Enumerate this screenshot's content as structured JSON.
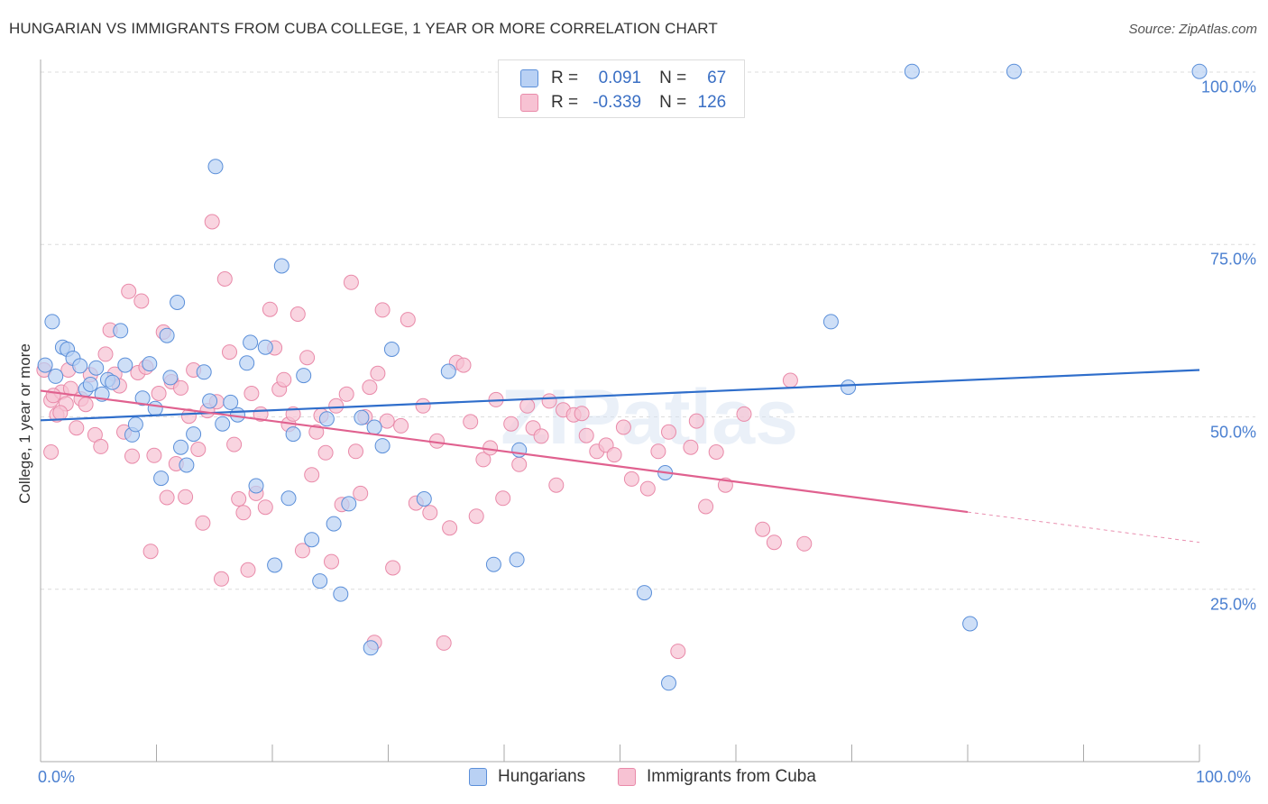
{
  "title": "HUNGARIAN VS IMMIGRANTS FROM CUBA COLLEGE, 1 YEAR OR MORE CORRELATION CHART",
  "source": "Source: ZipAtlas.com",
  "legend": {
    "rows": [
      {
        "r_label": "R =",
        "r_value": "0.091",
        "n_label": "N =",
        "n_value": "67"
      },
      {
        "r_label": "R =",
        "r_value": "-0.339",
        "n_label": "N =",
        "n_value": "126"
      }
    ]
  },
  "bottom_legend": [
    "Hungarians",
    "Immigrants from Cuba"
  ],
  "colors": {
    "blue_fill": "#b9d1f4",
    "blue_stroke": "#5b8fd9",
    "blue_line": "#2f6ecb",
    "pink_fill": "#f7c2d3",
    "pink_stroke": "#e98aa9",
    "pink_line": "#e0618f",
    "tick_text": "#4a7fd0"
  },
  "chart_data": {
    "type": "scatter",
    "title": "HUNGARIAN VS IMMIGRANTS FROM CUBA COLLEGE, 1 YEAR OR MORE CORRELATION CHART",
    "xlabel": "",
    "ylabel": "College, 1 year or more",
    "xlim": [
      0,
      100
    ],
    "ylim": [
      0,
      105
    ],
    "x_tick_labels": [
      "0.0%",
      "100.0%"
    ],
    "y_tick_values": [
      25,
      50,
      75,
      100
    ],
    "y_tick_labels": [
      "25.0%",
      "50.0%",
      "75.0%",
      "100.0%"
    ],
    "grid": true,
    "watermark": "ZIPatlas",
    "series": [
      {
        "name": "Hungarians",
        "color": "#5b8fd9",
        "trend": {
          "x0": 0,
          "y0": 49.5,
          "x1": 100,
          "y1": 56.8
        },
        "points": [
          [
            0.4,
            57.5
          ],
          [
            1.0,
            63.8
          ],
          [
            1.9,
            60.1
          ],
          [
            2.3,
            59.8
          ],
          [
            2.8,
            58.5
          ],
          [
            3.4,
            57.4
          ],
          [
            3.9,
            54.0
          ],
          [
            4.3,
            54.7
          ],
          [
            4.8,
            57.1
          ],
          [
            5.3,
            53.3
          ],
          [
            5.8,
            55.4
          ],
          [
            6.2,
            55.0
          ],
          [
            6.9,
            62.5
          ],
          [
            7.3,
            57.5
          ],
          [
            7.9,
            47.4
          ],
          [
            8.2,
            48.9
          ],
          [
            8.8,
            52.7
          ],
          [
            9.4,
            57.7
          ],
          [
            9.9,
            51.2
          ],
          [
            10.4,
            41.1
          ],
          [
            10.9,
            61.8
          ],
          [
            11.2,
            55.7
          ],
          [
            11.8,
            66.6
          ],
          [
            12.1,
            45.6
          ],
          [
            12.6,
            43.0
          ],
          [
            13.2,
            47.5
          ],
          [
            14.1,
            56.5
          ],
          [
            14.6,
            52.3
          ],
          [
            15.1,
            86.3
          ],
          [
            15.7,
            49.0
          ],
          [
            16.4,
            52.1
          ],
          [
            17.0,
            50.3
          ],
          [
            17.8,
            57.8
          ],
          [
            18.1,
            60.8
          ],
          [
            18.6,
            40.0
          ],
          [
            19.4,
            60.1
          ],
          [
            20.2,
            28.5
          ],
          [
            20.8,
            71.9
          ],
          [
            21.4,
            38.2
          ],
          [
            21.8,
            47.5
          ],
          [
            22.7,
            56.0
          ],
          [
            23.4,
            32.2
          ],
          [
            24.1,
            26.2
          ],
          [
            24.7,
            49.7
          ],
          [
            25.3,
            34.5
          ],
          [
            25.9,
            24.3
          ],
          [
            26.6,
            37.4
          ],
          [
            28.5,
            16.5
          ],
          [
            27.7,
            49.9
          ],
          [
            28.8,
            48.5
          ],
          [
            29.5,
            45.8
          ],
          [
            30.3,
            59.8
          ],
          [
            33.1,
            38.1
          ],
          [
            35.2,
            56.6
          ],
          [
            39.1,
            28.6
          ],
          [
            41.1,
            29.3
          ],
          [
            41.3,
            45.2
          ],
          [
            52.1,
            24.5
          ],
          [
            53.9,
            41.9
          ],
          [
            54.2,
            11.4
          ],
          [
            68.2,
            63.8
          ],
          [
            69.7,
            54.3
          ],
          [
            75.2,
            100.1
          ],
          [
            84.0,
            100.1
          ],
          [
            80.2,
            20.0
          ],
          [
            100.0,
            100.1
          ],
          [
            1.3,
            55.9
          ]
        ]
      },
      {
        "name": "Immigrants from Cuba",
        "color": "#e98aa9",
        "trend": {
          "x0": 0,
          "y0": 53.8,
          "x1": 80,
          "y1": 36.2,
          "dash_to_x": 100,
          "dash_to_y": 31.8
        },
        "points": [
          [
            0.3,
            56.8
          ],
          [
            0.9,
            52.4
          ],
          [
            1.4,
            50.3
          ],
          [
            1.8,
            53.6
          ],
          [
            2.2,
            51.9
          ],
          [
            2.6,
            54.1
          ],
          [
            3.1,
            48.4
          ],
          [
            3.5,
            52.6
          ],
          [
            3.9,
            51.8
          ],
          [
            4.3,
            56.1
          ],
          [
            4.7,
            47.4
          ],
          [
            5.2,
            45.7
          ],
          [
            5.6,
            59.1
          ],
          [
            6.0,
            62.6
          ],
          [
            6.4,
            56.2
          ],
          [
            6.8,
            54.5
          ],
          [
            7.2,
            47.8
          ],
          [
            7.6,
            68.2
          ],
          [
            7.9,
            44.3
          ],
          [
            8.4,
            56.4
          ],
          [
            8.7,
            66.8
          ],
          [
            9.1,
            57.2
          ],
          [
            9.5,
            30.5
          ],
          [
            9.8,
            44.4
          ],
          [
            10.2,
            53.4
          ],
          [
            10.6,
            62.3
          ],
          [
            10.9,
            38.3
          ],
          [
            11.3,
            55.1
          ],
          [
            11.7,
            43.2
          ],
          [
            12.1,
            54.2
          ],
          [
            12.5,
            38.4
          ],
          [
            12.8,
            50.1
          ],
          [
            13.2,
            56.8
          ],
          [
            13.6,
            45.3
          ],
          [
            14.0,
            34.6
          ],
          [
            14.4,
            50.9
          ],
          [
            14.8,
            78.3
          ],
          [
            15.2,
            52.2
          ],
          [
            15.6,
            26.5
          ],
          [
            15.9,
            70.0
          ],
          [
            16.3,
            59.4
          ],
          [
            16.7,
            46.0
          ],
          [
            17.1,
            38.1
          ],
          [
            17.5,
            36.1
          ],
          [
            17.9,
            27.8
          ],
          [
            18.2,
            53.4
          ],
          [
            18.6,
            38.9
          ],
          [
            19.0,
            50.4
          ],
          [
            19.4,
            36.9
          ],
          [
            19.8,
            65.6
          ],
          [
            20.2,
            60.0
          ],
          [
            20.6,
            54.0
          ],
          [
            21.0,
            55.4
          ],
          [
            21.4,
            48.9
          ],
          [
            21.8,
            50.4
          ],
          [
            22.2,
            64.9
          ],
          [
            22.6,
            30.6
          ],
          [
            23.0,
            58.6
          ],
          [
            23.4,
            41.6
          ],
          [
            23.8,
            47.8
          ],
          [
            24.2,
            50.2
          ],
          [
            24.6,
            44.8
          ],
          [
            25.1,
            29.0
          ],
          [
            25.5,
            51.6
          ],
          [
            26.0,
            37.3
          ],
          [
            26.4,
            53.3
          ],
          [
            26.8,
            69.5
          ],
          [
            27.2,
            45.0
          ],
          [
            27.6,
            38.9
          ],
          [
            28.0,
            50.0
          ],
          [
            28.4,
            54.3
          ],
          [
            28.8,
            17.3
          ],
          [
            29.1,
            56.3
          ],
          [
            29.5,
            65.5
          ],
          [
            29.9,
            49.4
          ],
          [
            30.4,
            28.1
          ],
          [
            31.1,
            48.7
          ],
          [
            31.7,
            64.1
          ],
          [
            32.4,
            37.5
          ],
          [
            33.0,
            51.6
          ],
          [
            33.6,
            36.1
          ],
          [
            34.2,
            46.5
          ],
          [
            34.8,
            17.2
          ],
          [
            35.3,
            33.9
          ],
          [
            35.9,
            57.9
          ],
          [
            36.5,
            57.5
          ],
          [
            37.1,
            49.3
          ],
          [
            37.6,
            35.6
          ],
          [
            38.2,
            43.8
          ],
          [
            38.8,
            45.5
          ],
          [
            39.3,
            52.5
          ],
          [
            39.9,
            38.2
          ],
          [
            40.6,
            49.0
          ],
          [
            41.3,
            43.1
          ],
          [
            42.0,
            51.6
          ],
          [
            42.5,
            48.4
          ],
          [
            43.2,
            47.2
          ],
          [
            43.9,
            52.3
          ],
          [
            44.5,
            40.1
          ],
          [
            45.1,
            51.0
          ],
          [
            46.0,
            50.3
          ],
          [
            46.7,
            50.5
          ],
          [
            47.1,
            47.3
          ],
          [
            48.0,
            45.0
          ],
          [
            48.8,
            45.9
          ],
          [
            49.5,
            44.5
          ],
          [
            50.3,
            48.5
          ],
          [
            51.0,
            41.0
          ],
          [
            52.4,
            39.6
          ],
          [
            53.3,
            45.0
          ],
          [
            54.2,
            47.8
          ],
          [
            55.0,
            16.0
          ],
          [
            56.1,
            45.6
          ],
          [
            56.6,
            49.4
          ],
          [
            57.4,
            37.0
          ],
          [
            58.3,
            44.9
          ],
          [
            59.1,
            40.1
          ],
          [
            60.7,
            50.4
          ],
          [
            62.3,
            33.7
          ],
          [
            63.3,
            31.8
          ],
          [
            64.7,
            55.3
          ],
          [
            65.9,
            31.6
          ],
          [
            0.9,
            44.9
          ],
          [
            1.1,
            53.1
          ],
          [
            1.7,
            50.6
          ],
          [
            2.4,
            56.8
          ]
        ]
      }
    ]
  }
}
